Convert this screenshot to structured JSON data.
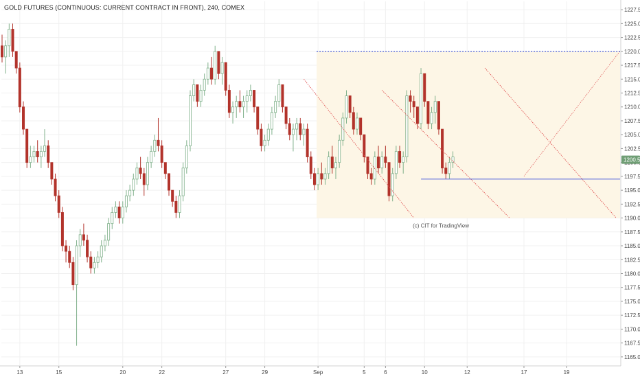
{
  "chart_data": {
    "type": "candlestick",
    "title": "GOLD FUTURES (CONTINUOUS: CURRENT CONTRACT IN FRONT), 240, COMEX",
    "watermark": "(c) CIT for TradingView",
    "last_price_label": "1200.5",
    "ylim": [
      1163.5,
      1229
    ],
    "y_ticks": [
      "1165.0",
      "1167.5",
      "1170.0",
      "1172.5",
      "1175.0",
      "1177.5",
      "1180.0",
      "1182.5",
      "1185.0",
      "1187.5",
      "1190.0",
      "1192.5",
      "1195.0",
      "1197.5",
      "1200.0",
      "1202.5",
      "1205.0",
      "1207.5",
      "1210.0",
      "1212.5",
      "1215.0",
      "1217.5",
      "1220.0",
      "1222.5",
      "1225.0",
      "1227.5"
    ],
    "x_ticks": [
      {
        "label": "13",
        "bar": 5
      },
      {
        "label": "15",
        "bar": 16
      },
      {
        "label": "20",
        "bar": 34
      },
      {
        "label": "22",
        "bar": 45
      },
      {
        "label": "27",
        "bar": 63
      },
      {
        "label": "29",
        "bar": 74
      },
      {
        "label": "Sep",
        "bar": 89
      },
      {
        "label": "5",
        "bar": 102
      },
      {
        "label": "6",
        "bar": 108
      },
      {
        "label": "10",
        "bar": 119
      },
      {
        "label": "12",
        "bar": 131
      },
      {
        "label": "17",
        "bar": 147
      },
      {
        "label": "19",
        "bar": 159
      }
    ],
    "bar_count_axis": 175,
    "colors": {
      "up": "#7fb08a",
      "down": "#b2332b",
      "grid": "#f0f0f0",
      "highlight_zone": "#fdf6e6",
      "resistance": "#2b47d9",
      "support": "#5566dd",
      "channel": "#e05050",
      "projection": "#e06060"
    },
    "candles": [
      [
        1221,
        1223,
        1218,
        1219
      ],
      [
        1219,
        1222,
        1216,
        1221
      ],
      [
        1221,
        1225,
        1219,
        1224
      ],
      [
        1224,
        1225,
        1219,
        1220
      ],
      [
        1220,
        1220,
        1216,
        1217
      ],
      [
        1217,
        1218,
        1209,
        1210
      ],
      [
        1210,
        1211,
        1205,
        1206
      ],
      [
        1206,
        1206,
        1199,
        1200
      ],
      [
        1200,
        1203,
        1199,
        1201
      ],
      [
        1201,
        1203,
        1200,
        1202
      ],
      [
        1202,
        1204,
        1200,
        1201
      ],
      [
        1201,
        1203,
        1199,
        1202
      ],
      [
        1202,
        1206,
        1201,
        1203
      ],
      [
        1203,
        1204,
        1199,
        1200
      ],
      [
        1200,
        1200,
        1196,
        1197
      ],
      [
        1197,
        1198,
        1193,
        1194
      ],
      [
        1194,
        1195,
        1190,
        1191
      ],
      [
        1191,
        1192,
        1184,
        1185
      ],
      [
        1185,
        1186,
        1182,
        1184
      ],
      [
        1184,
        1185,
        1181,
        1182
      ],
      [
        1182,
        1183,
        1177,
        1178
      ],
      [
        1178,
        1186,
        1167,
        1185
      ],
      [
        1185,
        1188,
        1183,
        1187
      ],
      [
        1187,
        1189,
        1185,
        1186
      ],
      [
        1186,
        1187,
        1182,
        1183
      ],
      [
        1183,
        1184,
        1180,
        1181
      ],
      [
        1181,
        1183,
        1180,
        1182
      ],
      [
        1182,
        1184,
        1181,
        1183
      ],
      [
        1183,
        1186,
        1182,
        1185
      ],
      [
        1185,
        1187,
        1184,
        1186
      ],
      [
        1186,
        1190,
        1185,
        1189
      ],
      [
        1189,
        1192,
        1188,
        1191
      ],
      [
        1191,
        1193,
        1190,
        1192
      ],
      [
        1192,
        1193,
        1189,
        1190
      ],
      [
        1190,
        1193,
        1189,
        1192
      ],
      [
        1192,
        1195,
        1191,
        1194
      ],
      [
        1194,
        1196,
        1193,
        1195
      ],
      [
        1195,
        1198,
        1194,
        1197
      ],
      [
        1197,
        1200,
        1196,
        1199
      ],
      [
        1199,
        1201,
        1197,
        1198
      ],
      [
        1198,
        1199,
        1194,
        1196
      ],
      [
        1196,
        1201,
        1195,
        1200
      ],
      [
        1200,
        1203,
        1199,
        1202
      ],
      [
        1202,
        1205,
        1201,
        1204
      ],
      [
        1204,
        1208,
        1202,
        1203
      ],
      [
        1203,
        1204,
        1199,
        1200
      ],
      [
        1200,
        1200,
        1197,
        1198
      ],
      [
        1198,
        1198,
        1194,
        1195
      ],
      [
        1195,
        1195,
        1192,
        1193
      ],
      [
        1193,
        1194,
        1190,
        1191
      ],
      [
        1191,
        1195,
        1190,
        1194
      ],
      [
        1194,
        1200,
        1193,
        1199
      ],
      [
        1199,
        1204,
        1198,
        1203
      ],
      [
        1203,
        1213,
        1202,
        1212
      ],
      [
        1212,
        1215,
        1211,
        1214
      ],
      [
        1214,
        1214,
        1210,
        1211
      ],
      [
        1211,
        1214,
        1210,
        1213
      ],
      [
        1213,
        1216,
        1212,
        1215
      ],
      [
        1215,
        1218,
        1214,
        1217
      ],
      [
        1217,
        1219,
        1214,
        1215
      ],
      [
        1215,
        1221,
        1214,
        1220
      ],
      [
        1220,
        1220,
        1215,
        1216
      ],
      [
        1216,
        1219,
        1214,
        1218
      ],
      [
        1218,
        1218,
        1212,
        1213
      ],
      [
        1213,
        1214,
        1208,
        1209
      ],
      [
        1209,
        1211,
        1207,
        1210
      ],
      [
        1210,
        1212,
        1208,
        1211
      ],
      [
        1211,
        1213,
        1209,
        1210
      ],
      [
        1210,
        1212,
        1208,
        1211
      ],
      [
        1211,
        1213,
        1209,
        1212
      ],
      [
        1212,
        1214,
        1211,
        1213
      ],
      [
        1213,
        1213,
        1209,
        1210
      ],
      [
        1210,
        1210,
        1205,
        1206
      ],
      [
        1206,
        1207,
        1202,
        1203
      ],
      [
        1203,
        1205,
        1202,
        1204
      ],
      [
        1204,
        1207,
        1203,
        1206
      ],
      [
        1206,
        1210,
        1205,
        1209
      ],
      [
        1209,
        1212,
        1208,
        1211
      ],
      [
        1211,
        1215,
        1210,
        1214
      ],
      [
        1214,
        1214,
        1209,
        1210
      ],
      [
        1210,
        1210,
        1206,
        1207
      ],
      [
        1207,
        1208,
        1204,
        1205
      ],
      [
        1205,
        1207,
        1202,
        1206
      ],
      [
        1206,
        1208,
        1204,
        1207
      ],
      [
        1207,
        1208,
        1204,
        1205
      ],
      [
        1205,
        1207,
        1203,
        1206
      ],
      [
        1206,
        1207,
        1200,
        1201
      ],
      [
        1201,
        1202,
        1197,
        1198
      ],
      [
        1198,
        1199,
        1195,
        1196
      ],
      [
        1196,
        1199,
        1195,
        1198
      ],
      [
        1198,
        1200,
        1196,
        1197
      ],
      [
        1197,
        1199,
        1196,
        1198
      ],
      [
        1198,
        1202,
        1197,
        1201
      ],
      [
        1201,
        1203,
        1198,
        1199
      ],
      [
        1199,
        1201,
        1197,
        1200
      ],
      [
        1200,
        1205,
        1199,
        1204
      ],
      [
        1204,
        1209,
        1203,
        1208
      ],
      [
        1208,
        1213,
        1207,
        1212
      ],
      [
        1212,
        1212,
        1208,
        1209
      ],
      [
        1209,
        1210,
        1205,
        1206
      ],
      [
        1206,
        1209,
        1205,
        1208
      ],
      [
        1208,
        1208,
        1204,
        1205
      ],
      [
        1205,
        1205,
        1200,
        1201
      ],
      [
        1201,
        1201,
        1197,
        1198
      ],
      [
        1198,
        1199,
        1196,
        1197
      ],
      [
        1197,
        1202,
        1196,
        1201
      ],
      [
        1201,
        1203,
        1198,
        1199
      ],
      [
        1199,
        1202,
        1198,
        1201
      ],
      [
        1201,
        1203,
        1199,
        1200
      ],
      [
        1200,
        1200,
        1193,
        1194
      ],
      [
        1194,
        1199,
        1193,
        1198
      ],
      [
        1198,
        1203,
        1197,
        1202
      ],
      [
        1202,
        1203,
        1199,
        1200
      ],
      [
        1200,
        1202,
        1198,
        1201
      ],
      [
        1201,
        1213,
        1200,
        1212
      ],
      [
        1212,
        1213,
        1209,
        1211
      ],
      [
        1211,
        1212,
        1208,
        1210
      ],
      [
        1210,
        1210,
        1206,
        1207
      ],
      [
        1207,
        1217,
        1206,
        1216
      ],
      [
        1216,
        1216,
        1210,
        1211
      ],
      [
        1211,
        1211,
        1206,
        1207
      ],
      [
        1207,
        1210,
        1206,
        1209
      ],
      [
        1209,
        1212,
        1207,
        1211
      ],
      [
        1211,
        1211,
        1205,
        1206
      ],
      [
        1206,
        1206,
        1198,
        1199
      ],
      [
        1199,
        1200,
        1197,
        1198
      ],
      [
        1198,
        1201,
        1197,
        1200
      ],
      [
        1200,
        1202,
        1199,
        1201
      ]
    ],
    "annotations": {
      "highlight_zone": {
        "bar_start": 89,
        "bar_end": 174,
        "price_low": 1190,
        "price_high": 1220
      },
      "resistance_line": {
        "price": 1220,
        "bar_start": 89,
        "bar_end": 174
      },
      "support_line": {
        "price": 1197,
        "bar_start": 118,
        "bar_end": 174
      },
      "channel_lines": [
        {
          "bar1": 85,
          "price1": 1215,
          "bar2": 116,
          "price2": 1190
        },
        {
          "bar1": 107,
          "price1": 1213,
          "bar2": 143,
          "price2": 1190
        },
        {
          "bar1": 136,
          "price1": 1217,
          "bar2": 173,
          "price2": 1190
        }
      ],
      "projection_lines": [
        {
          "bar1": 147,
          "price1": 1197.5,
          "bar2": 174,
          "price2": 1220
        }
      ]
    }
  }
}
